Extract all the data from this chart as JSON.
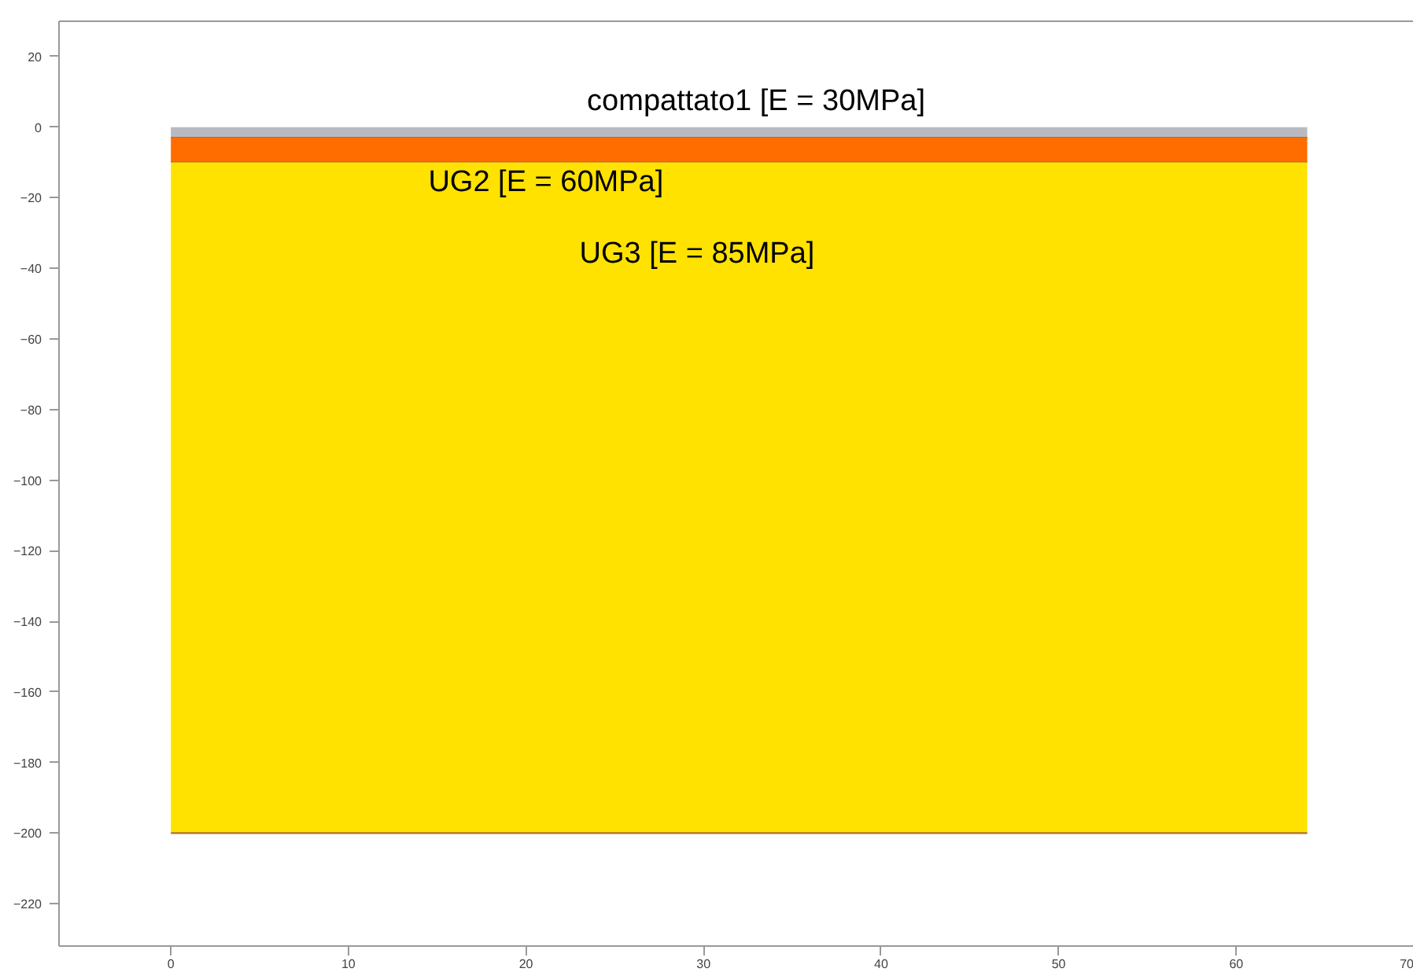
{
  "chart_data": {
    "type": "area",
    "stacked": true,
    "x": [
      0,
      64
    ],
    "series": [
      {
        "name": "compattato1 [E = 30MPa]",
        "color": "#b9b9c1",
        "values": [
          -3,
          -3
        ]
      },
      {
        "name": "UG2 [E = 60MPa]",
        "color": "#ff6c00",
        "values": [
          -7,
          -7
        ]
      },
      {
        "name": "UG3 [E = 85MPa]",
        "color": "#ffe200",
        "values": [
          -190,
          -190
        ]
      }
    ],
    "xlim": [
      -6.3,
      70
    ],
    "xticks": [
      0,
      10,
      20,
      30,
      40,
      50,
      60,
      70
    ],
    "ylim": [
      -232,
      30
    ],
    "yticks": [
      -220,
      -200,
      -180,
      -160,
      -140,
      -120,
      -100,
      -80,
      -60,
      -40,
      -20,
      0,
      20
    ],
    "grid": false
  }
}
